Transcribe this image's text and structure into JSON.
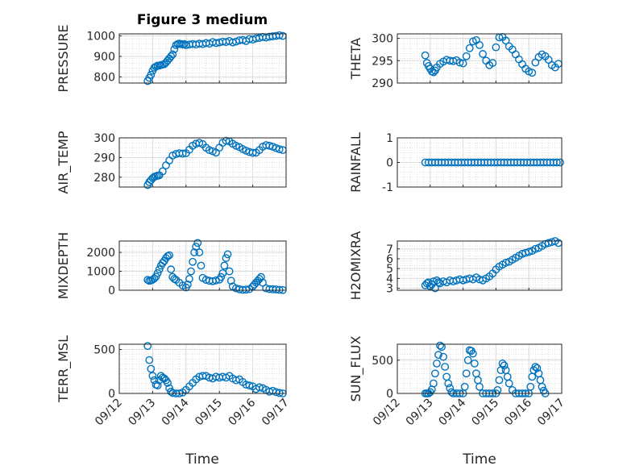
{
  "figure": {
    "title": "Figure 3 medium",
    "xlabel": "Time",
    "xticks": [
      "09/12",
      "09/13",
      "09/14",
      "09/15",
      "09/16",
      "09/17"
    ]
  },
  "chart_data": [
    {
      "type": "scatter",
      "ylabel": "PRESSURE",
      "ylim": [
        770,
        1010
      ],
      "yticks": [
        800,
        900,
        1000
      ],
      "grid": true,
      "marker_color": "#0072BD",
      "x": [
        0.85,
        0.9,
        0.95,
        1.0,
        1.05,
        1.1,
        1.15,
        1.2,
        1.25,
        1.3,
        1.35,
        1.4,
        1.45,
        1.5,
        1.55,
        1.6,
        1.65,
        1.7,
        1.75,
        1.8,
        1.85,
        1.9,
        1.95,
        2.0,
        2.1,
        2.2,
        2.3,
        2.4,
        2.5,
        2.6,
        2.7,
        2.8,
        2.9,
        3.0,
        3.1,
        3.2,
        3.3,
        3.4,
        3.5,
        3.6,
        3.7,
        3.8,
        3.9,
        4.0,
        4.1,
        4.2,
        4.3,
        4.4,
        4.5,
        4.6,
        4.7,
        4.8,
        4.9
      ],
      "y": [
        780,
        795,
        810,
        830,
        845,
        850,
        855,
        855,
        858,
        860,
        862,
        870,
        880,
        890,
        900,
        910,
        935,
        955,
        960,
        962,
        960,
        958,
        960,
        955,
        958,
        960,
        958,
        962,
        960,
        965,
        962,
        970,
        965,
        968,
        972,
        970,
        975,
        968,
        972,
        978,
        980,
        975,
        985,
        982,
        988,
        990,
        995,
        992,
        996,
        998,
        1000,
        1003,
        1000
      ]
    },
    {
      "type": "scatter",
      "ylabel": "THETA",
      "ylim": [
        290,
        301
      ],
      "yticks": [
        290,
        295,
        300
      ],
      "grid": true,
      "marker_color": "#0072BD",
      "x": [
        0.85,
        0.9,
        0.95,
        1.0,
        1.05,
        1.1,
        1.15,
        1.2,
        1.3,
        1.4,
        1.5,
        1.6,
        1.7,
        1.8,
        1.9,
        2.0,
        2.1,
        2.2,
        2.3,
        2.4,
        2.5,
        2.6,
        2.7,
        2.8,
        2.9,
        3.0,
        3.1,
        3.2,
        3.3,
        3.4,
        3.5,
        3.6,
        3.7,
        3.8,
        3.9,
        4.0,
        4.1,
        4.2,
        4.3,
        4.4,
        4.5,
        4.6,
        4.7,
        4.8,
        4.9
      ],
      "y": [
        296.2,
        294.5,
        293.8,
        293.2,
        292.6,
        292.4,
        292.8,
        293.5,
        294.3,
        294.8,
        295.2,
        295.0,
        294.9,
        295.1,
        294.6,
        294.4,
        296,
        297.8,
        299.3,
        299.6,
        298.5,
        296.5,
        295,
        294,
        294.5,
        298,
        300.2,
        300.3,
        299.5,
        298.2,
        297.5,
        296.4,
        295.3,
        294.2,
        293.2,
        292.6,
        292.3,
        294.6,
        295.8,
        296.4,
        296.0,
        295.2,
        294.0,
        293.5,
        294.3
      ]
    },
    {
      "type": "scatter",
      "ylabel": "AIR_TEMP",
      "ylim": [
        275,
        300
      ],
      "yticks": [
        280,
        290,
        300
      ],
      "grid": true,
      "marker_color": "#0072BD",
      "x": [
        0.85,
        0.9,
        0.95,
        1.0,
        1.05,
        1.1,
        1.15,
        1.2,
        1.3,
        1.4,
        1.5,
        1.6,
        1.7,
        1.8,
        1.9,
        2.0,
        2.1,
        2.2,
        2.3,
        2.4,
        2.5,
        2.6,
        2.7,
        2.8,
        2.9,
        3.0,
        3.1,
        3.2,
        3.3,
        3.4,
        3.5,
        3.6,
        3.7,
        3.8,
        3.9,
        4.0,
        4.1,
        4.2,
        4.3,
        4.4,
        4.5,
        4.6,
        4.7,
        4.8,
        4.9
      ],
      "y": [
        276,
        277.5,
        278.5,
        279.5,
        280.2,
        280.5,
        280.8,
        281,
        283,
        286,
        288.5,
        291,
        291.8,
        292.2,
        292.0,
        292.2,
        294,
        296,
        297,
        297.5,
        296.8,
        295,
        293.8,
        293.2,
        292.5,
        295,
        297.5,
        298.5,
        298.2,
        297.0,
        296.0,
        295.3,
        294.3,
        293.5,
        292.8,
        292.4,
        292.5,
        293.8,
        295.5,
        296.3,
        296.0,
        295.5,
        294.8,
        294.2,
        293.8
      ]
    },
    {
      "type": "scatter",
      "ylabel": "RAINFALL",
      "ylim": [
        -1,
        1
      ],
      "yticks": [
        -1,
        0,
        1
      ],
      "grid": true,
      "marker_color": "#0072BD",
      "x": [
        0.85,
        0.95,
        1.05,
        1.15,
        1.25,
        1.35,
        1.45,
        1.55,
        1.65,
        1.75,
        1.85,
        1.95,
        2.05,
        2.15,
        2.25,
        2.35,
        2.45,
        2.55,
        2.65,
        2.75,
        2.85,
        2.95,
        3.05,
        3.15,
        3.25,
        3.35,
        3.45,
        3.55,
        3.65,
        3.75,
        3.85,
        3.95,
        4.05,
        4.15,
        4.25,
        4.35,
        4.45,
        4.55,
        4.65,
        4.75,
        4.85,
        4.95
      ],
      "y": [
        0,
        0,
        0,
        0,
        0,
        0,
        0,
        0,
        0,
        0,
        0,
        0,
        0,
        0,
        0,
        0,
        0,
        0,
        0,
        0,
        0,
        0,
        0,
        0,
        0,
        0,
        0,
        0,
        0,
        0,
        0,
        0,
        0,
        0,
        0,
        0,
        0,
        0,
        0,
        0,
        0,
        0
      ]
    },
    {
      "type": "scatter",
      "ylabel": "MIXDEPTH",
      "ylim": [
        0,
        2600
      ],
      "yticks": [
        0,
        1000,
        2000
      ],
      "grid": true,
      "marker_color": "#0072BD",
      "x": [
        0.85,
        0.9,
        0.95,
        1.0,
        1.05,
        1.1,
        1.15,
        1.2,
        1.25,
        1.3,
        1.35,
        1.4,
        1.45,
        1.5,
        1.55,
        1.6,
        1.65,
        1.7,
        1.8,
        1.9,
        2.0,
        2.05,
        2.1,
        2.15,
        2.2,
        2.25,
        2.3,
        2.35,
        2.4,
        2.45,
        2.5,
        2.6,
        2.7,
        2.8,
        2.9,
        3.0,
        3.05,
        3.1,
        3.15,
        3.2,
        3.25,
        3.3,
        3.35,
        3.4,
        3.5,
        3.6,
        3.7,
        3.8,
        3.9,
        4.0,
        4.05,
        4.1,
        4.15,
        4.2,
        4.25,
        4.3,
        4.4,
        4.5,
        4.6,
        4.7,
        4.8,
        4.9
      ],
      "y": [
        550,
        500,
        520,
        560,
        620,
        720,
        900,
        1100,
        1300,
        1450,
        1550,
        1700,
        1800,
        1850,
        1100,
        700,
        600,
        550,
        400,
        250,
        150,
        300,
        600,
        1000,
        1500,
        2000,
        2300,
        2500,
        2000,
        1300,
        650,
        550,
        500,
        480,
        520,
        560,
        700,
        900,
        1300,
        1700,
        1900,
        1000,
        500,
        200,
        100,
        50,
        20,
        30,
        60,
        200,
        300,
        400,
        500,
        600,
        700,
        400,
        100,
        60,
        50,
        40,
        20,
        10
      ]
    },
    {
      "type": "scatter",
      "ylabel": "H2OMIXRA",
      "ylim": [
        2.8,
        7.8
      ],
      "yticks": [
        3,
        4,
        5,
        6,
        7
      ],
      "grid": true,
      "marker_color": "#0072BD",
      "x": [
        0.85,
        0.9,
        0.95,
        1.0,
        1.05,
        1.1,
        1.15,
        1.2,
        1.25,
        1.3,
        1.4,
        1.5,
        1.6,
        1.7,
        1.8,
        1.9,
        2.0,
        2.1,
        2.2,
        2.3,
        2.4,
        2.5,
        2.6,
        2.7,
        2.8,
        2.9,
        3.0,
        3.1,
        3.2,
        3.3,
        3.4,
        3.5,
        3.6,
        3.7,
        3.8,
        3.9,
        4.0,
        4.1,
        4.2,
        4.3,
        4.4,
        4.5,
        4.6,
        4.7,
        4.8,
        4.9
      ],
      "y": [
        3.3,
        3.5,
        3.6,
        3.2,
        3.4,
        3.7,
        3.0,
        3.8,
        3.6,
        3.5,
        3.7,
        3.6,
        3.8,
        3.7,
        3.8,
        3.9,
        3.8,
        3.9,
        4.0,
        3.9,
        4.1,
        3.9,
        3.8,
        4.0,
        4.2,
        4.5,
        4.9,
        5.2,
        5.4,
        5.6,
        5.7,
        5.9,
        6.1,
        6.3,
        6.5,
        6.6,
        6.7,
        6.8,
        7.0,
        7.1,
        7.3,
        7.5,
        7.6,
        7.7,
        7.8,
        7.6
      ]
    },
    {
      "type": "scatter",
      "ylabel": "TERR_MSL",
      "ylim": [
        0,
        560
      ],
      "yticks": [
        0,
        500
      ],
      "grid": true,
      "marker_color": "#0072BD",
      "x": [
        0.85,
        0.9,
        0.95,
        1.0,
        1.05,
        1.1,
        1.15,
        1.2,
        1.25,
        1.3,
        1.35,
        1.4,
        1.45,
        1.5,
        1.55,
        1.6,
        1.7,
        1.8,
        1.9,
        2.0,
        2.1,
        2.2,
        2.3,
        2.4,
        2.5,
        2.6,
        2.7,
        2.8,
        2.9,
        3.0,
        3.1,
        3.2,
        3.3,
        3.4,
        3.5,
        3.6,
        3.7,
        3.8,
        3.9,
        4.0,
        4.1,
        4.2,
        4.3,
        4.4,
        4.5,
        4.6,
        4.7,
        4.8,
        4.9
      ],
      "y": [
        540,
        380,
        280,
        200,
        150,
        100,
        90,
        150,
        200,
        180,
        170,
        150,
        120,
        60,
        20,
        5,
        0,
        0,
        10,
        40,
        80,
        120,
        160,
        190,
        200,
        200,
        180,
        170,
        190,
        180,
        190,
        180,
        200,
        170,
        150,
        160,
        130,
        100,
        90,
        80,
        50,
        70,
        60,
        40,
        20,
        30,
        15,
        5,
        0
      ]
    },
    {
      "type": "scatter",
      "ylabel": "SUN_FLUX",
      "ylim": [
        0,
        740
      ],
      "yticks": [
        0,
        500
      ],
      "grid": true,
      "marker_color": "#0072BD",
      "x": [
        0.85,
        0.9,
        0.95,
        1.0,
        1.05,
        1.1,
        1.15,
        1.2,
        1.25,
        1.3,
        1.35,
        1.4,
        1.45,
        1.5,
        1.55,
        1.6,
        1.65,
        1.7,
        1.8,
        1.9,
        2.0,
        2.05,
        2.1,
        2.15,
        2.2,
        2.25,
        2.3,
        2.35,
        2.4,
        2.45,
        2.5,
        2.6,
        2.7,
        2.8,
        2.9,
        3.0,
        3.05,
        3.1,
        3.15,
        3.2,
        3.25,
        3.3,
        3.35,
        3.4,
        3.5,
        3.6,
        3.7,
        3.8,
        3.9,
        4.0,
        4.05,
        4.1,
        4.15,
        4.2,
        4.25,
        4.3,
        4.35,
        4.4,
        4.45,
        4.5
      ],
      "y": [
        0,
        0,
        0,
        20,
        60,
        150,
        300,
        450,
        580,
        720,
        700,
        550,
        400,
        250,
        150,
        80,
        20,
        0,
        0,
        0,
        0,
        100,
        300,
        500,
        650,
        640,
        600,
        450,
        300,
        200,
        100,
        0,
        0,
        0,
        0,
        0,
        50,
        200,
        350,
        450,
        420,
        350,
        250,
        150,
        50,
        0,
        0,
        0,
        0,
        0,
        100,
        250,
        350,
        400,
        380,
        300,
        200,
        100,
        40,
        0
      ]
    }
  ]
}
